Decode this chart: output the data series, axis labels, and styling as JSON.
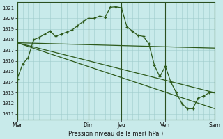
{
  "background_color": "#c8eaea",
  "grid_color": "#a0cccc",
  "line_color": "#2d5a1b",
  "title": "Pression niveau de la mer( hPa )",
  "ylim": [
    1010.5,
    1021.5
  ],
  "yticks": [
    1011,
    1012,
    1013,
    1014,
    1015,
    1016,
    1017,
    1018,
    1019,
    1020,
    1021
  ],
  "day_labels": [
    "Mer",
    "Dim",
    "Jeu",
    "Ven",
    "Sam"
  ],
  "day_positions": [
    0,
    13,
    19,
    27,
    36
  ],
  "xlim": [
    0,
    36
  ],
  "series1_x": [
    0,
    1,
    2,
    3,
    4,
    5,
    6,
    7,
    8,
    9,
    10,
    11,
    12,
    13,
    14,
    15,
    16,
    17,
    18,
    19,
    20,
    21,
    22,
    23,
    24,
    25,
    26,
    27,
    28,
    29,
    30,
    31,
    32,
    33,
    34,
    35,
    36
  ],
  "series1_y": [
    1014.3,
    1015.7,
    1016.3,
    1018.0,
    1018.2,
    1018.5,
    1018.8,
    1018.3,
    1018.5,
    1018.7,
    1018.9,
    1019.3,
    1019.7,
    1020.0,
    1020.0,
    1020.2,
    1020.1,
    1021.05,
    1021.1,
    1021.0,
    1019.2,
    1018.8,
    1018.4,
    1018.3,
    1017.6,
    1015.6,
    1014.5,
    1015.5,
    1014.0,
    1013.0,
    1012.0,
    1011.5,
    1011.5,
    1012.5,
    1012.7,
    1013.0,
    1013.0
  ],
  "series2_x": [
    0,
    36
  ],
  "series2_y": [
    1017.7,
    1017.2
  ],
  "series3_x": [
    0,
    36
  ],
  "series3_y": [
    1017.7,
    1013.0
  ],
  "series4_x": [
    0,
    36
  ],
  "series4_y": [
    1017.7,
    1011.5
  ],
  "vline_color": "#2a5020",
  "vline_positions": [
    0,
    13,
    19,
    27,
    36
  ]
}
